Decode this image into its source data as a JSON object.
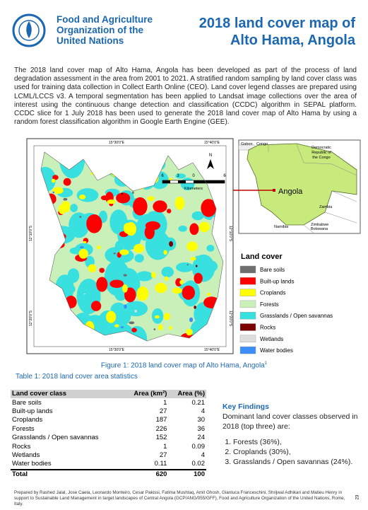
{
  "header": {
    "organization": [
      "Food and Agriculture",
      "Organization of the",
      "United Nations"
    ],
    "title": [
      "2018 land cover map of",
      "Alto Hama, Angola"
    ]
  },
  "intro": "The 2018 land cover map of Alto Hama, Angola has been developed as part of the process of land degradation assessment in the area from 2001 to 2021. A stratified random sampling by land cover class was used for training data collection in Collect Earth Online (CEO). Land cover legend classes are prepared using LCML/LCCS v3. A temporal segmentation has been applied to Landsat image collections over the area of interest using the continuous change detection and classification (CCDC) algorithm in SEPAL platform. CCDC slice for 1 July 2018 has been used to generate the 2018 land cover map of Alto Hama by using a random forest classification algorithm in Google Earth Engine (GEE).",
  "map": {
    "x_labels": [
      "15°30'0\"E",
      "15°40'0\"E"
    ],
    "y_labels": [
      "12°10'0\"S",
      "12°20'0\"S"
    ],
    "north": "N",
    "scale_ticks": [
      "6",
      "3",
      "0",
      "6"
    ],
    "scale_unit": "Kilometers",
    "inset": {
      "gabon": "Gabon",
      "congo": "Congo",
      "drc": [
        "Democratic",
        "Republic of",
        "the Congo"
      ],
      "angola": "Angola",
      "zambia": "Zambia",
      "namibia": "Namibia",
      "zimbabwe": "Zimbabwe",
      "botswana": "Botswana"
    },
    "legend_title": "Land cover",
    "legend": [
      {
        "label": "Bare soils",
        "color": "#6e6e6e"
      },
      {
        "label": "Built-up lands",
        "color": "#ff0000"
      },
      {
        "label": "Croplands",
        "color": "#ffff00"
      },
      {
        "label": "Forests",
        "color": "#c9f0b8"
      },
      {
        "label": "Grasslands / Open savannas",
        "color": "#38e0e0"
      },
      {
        "label": "Rocks",
        "color": "#7a0000"
      },
      {
        "label": "Wetlands",
        "color": "#dedede"
      },
      {
        "label": "Water bodies",
        "color": "#3b8ef5"
      }
    ]
  },
  "figure_caption": {
    "text": "Figure 1: 2018 land cover map of Alto Hama, Angola",
    "note": "1"
  },
  "table": {
    "caption": "Table 1: 2018 land cover area statistics",
    "columns": [
      "Land cover class",
      "Area (km²)",
      "Area (%)"
    ],
    "rows": [
      [
        "Bare soils",
        1,
        0.21
      ],
      [
        "Built-up lands",
        27,
        4
      ],
      [
        "Croplands",
        187,
        30
      ],
      [
        "Forests",
        226,
        36
      ],
      [
        "Grasslands / Open savannas",
        152,
        24
      ],
      [
        "Rocks",
        1,
        0.09
      ],
      [
        "Wetlands",
        27,
        4
      ],
      [
        "Water bodies",
        0.11,
        0.02
      ]
    ],
    "total": [
      "Total",
      620,
      100
    ]
  },
  "key_findings": {
    "title": "Key Findings",
    "intro": "Dominant land cover classes observed in 2018 (top three) are:",
    "items": [
      "Forests (36%),",
      "Croplands (30%),",
      "Grasslands / Open savannas (24%)."
    ]
  },
  "footer": "Prepared by Rashed Jalal, Jose Caela, Leonardo Monteiro, Cesar Pakissi, Fatima Mushtaq, Amit Ghosh, Gianluca Franceschini, Shrijwal Adhikari and Matieu Henry in support to Sustainable Land Management in target landscapes of Central Angola (GCP/ANG/055/GFF), Food and Agriculture Organization of the United Nations, Rome, Italy.",
  "page_number": "23"
}
